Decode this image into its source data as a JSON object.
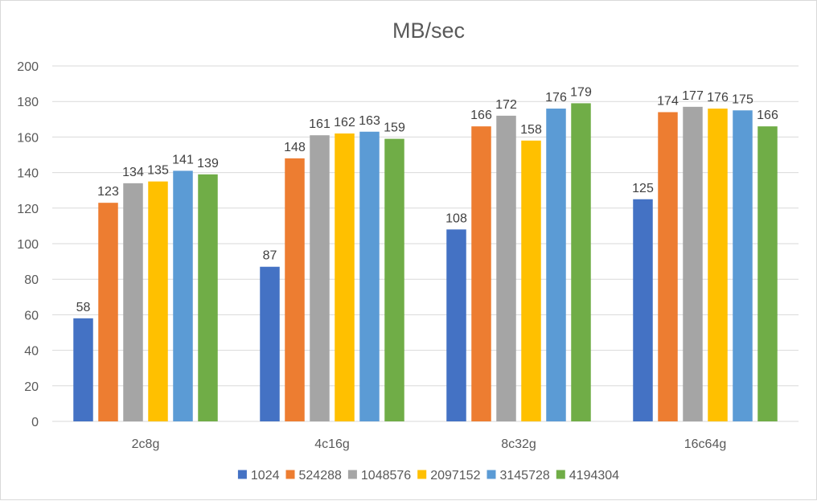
{
  "chart_data": {
    "type": "bar",
    "title": "MB/sec",
    "xlabel": "",
    "ylabel": "",
    "categories": [
      "2c8g",
      "4c16g",
      "8c32g",
      "16c64g"
    ],
    "series": [
      {
        "name": "1024",
        "color": "#4472C4",
        "values": [
          58,
          87,
          108,
          125
        ]
      },
      {
        "name": "524288",
        "color": "#ED7D31",
        "values": [
          123,
          148,
          166,
          174
        ]
      },
      {
        "name": "1048576",
        "color": "#A5A5A5",
        "values": [
          134,
          161,
          172,
          177
        ]
      },
      {
        "name": "2097152",
        "color": "#FFC000",
        "values": [
          135,
          162,
          158,
          176
        ]
      },
      {
        "name": "3145728",
        "color": "#5B9BD5",
        "values": [
          141,
          163,
          176,
          175
        ]
      },
      {
        "name": "4194304",
        "color": "#70AD47",
        "values": [
          139,
          159,
          179,
          166
        ]
      }
    ],
    "ylim": [
      0,
      200
    ],
    "yticks": [
      0,
      20,
      40,
      60,
      80,
      100,
      120,
      140,
      160,
      180,
      200
    ],
    "grid": true,
    "legend": "bottom",
    "data_labels": true,
    "gridline_color": "#d9d9d9"
  }
}
